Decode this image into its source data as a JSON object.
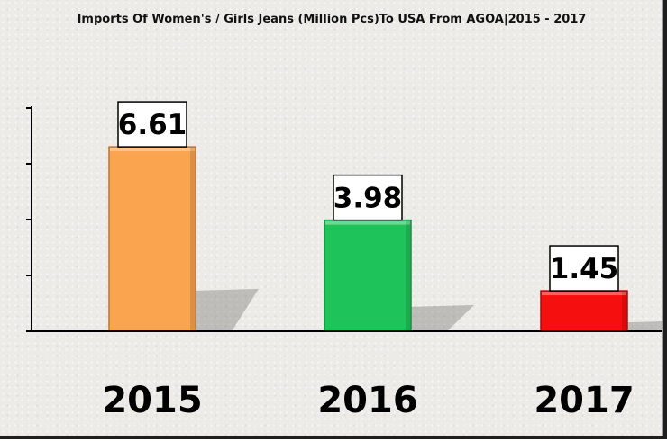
{
  "chart_data": {
    "type": "bar",
    "title": "Imports Of Women's / Girls Jeans (Million Pcs)To USA From AGOA|2015 - 2017",
    "xlabel": "",
    "ylabel": "",
    "categories": [
      "2015",
      "2016",
      "2017"
    ],
    "values": [
      6.61,
      3.98,
      1.45
    ],
    "value_labels": [
      "6.61",
      "3.98",
      "1.45"
    ],
    "colors": [
      "#fba450",
      "#1ec45a",
      "#f50f0f"
    ],
    "ylim": [
      0,
      8
    ],
    "grid": false,
    "legend": "none",
    "y_tick_labels_shown": false
  }
}
